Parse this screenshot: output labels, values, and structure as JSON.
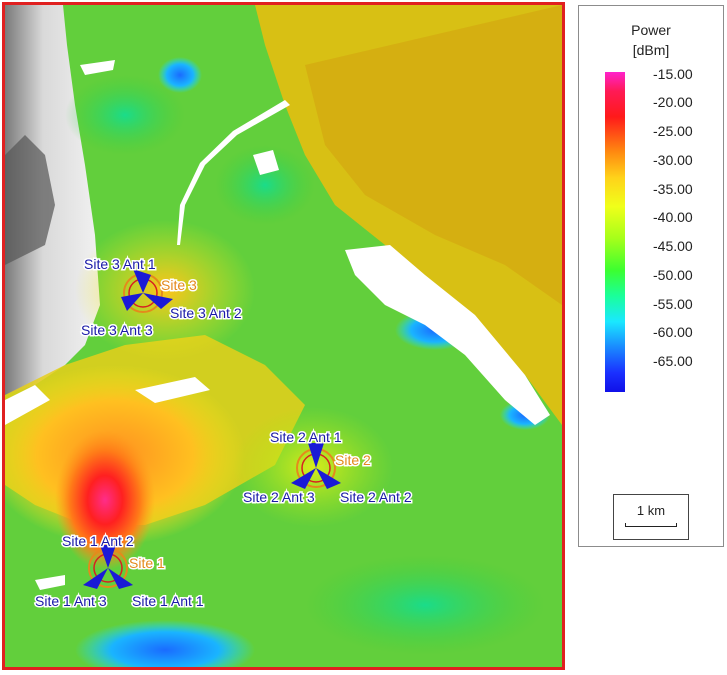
{
  "legend": {
    "title_line1": "Power",
    "title_line2": "[dBm]",
    "ticks": [
      "-15.00",
      "-20.00",
      "-25.00",
      "-30.00",
      "-35.00",
      "-40.00",
      "-45.00",
      "-50.00",
      "-55.00",
      "-60.00",
      "-65.00"
    ],
    "scale_label": "1 km"
  },
  "colors": {
    "frame_border": "#e02020",
    "antenna_fill": "#1a1ad6",
    "antenna_label": "#1a1aa8",
    "site_label": "#e48a1c"
  },
  "sites": [
    {
      "name": "Site 1",
      "antennas": [
        "Site 1 Ant 1",
        "Site 1 Ant 2",
        "Site 1 Ant 3"
      ]
    },
    {
      "name": "Site 2",
      "antennas": [
        "Site 2 Ant 1",
        "Site 2 Ant 2",
        "Site 2 Ant 3"
      ]
    },
    {
      "name": "Site 3",
      "antennas": [
        "Site 3 Ant 1",
        "Site 3 Ant 2",
        "Site 3 Ant 3"
      ]
    }
  ]
}
